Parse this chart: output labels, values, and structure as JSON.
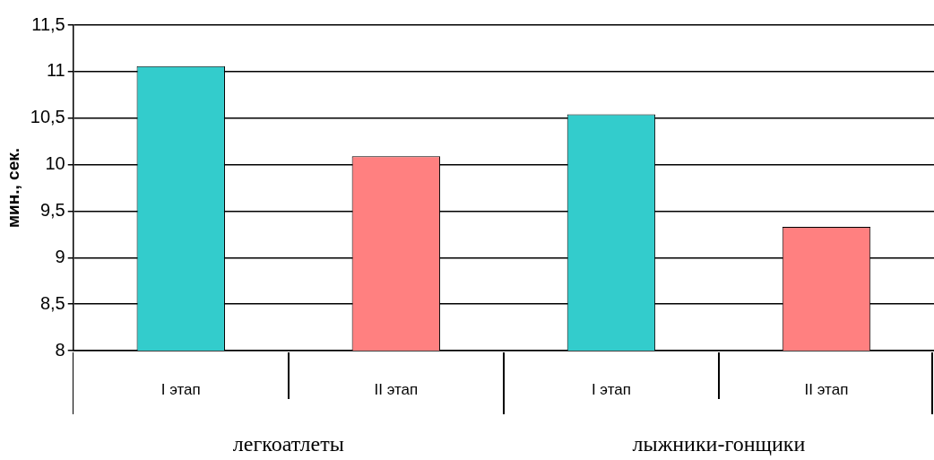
{
  "chart_data": {
    "type": "bar",
    "ylabel": "мин., сек.",
    "categories": [
      "I этап",
      "II этап",
      "I этап",
      "II этап"
    ],
    "values": [
      11.06,
      10.09,
      10.54,
      9.33
    ],
    "colors": [
      "#33cccc",
      "#ff8080",
      "#33cccc",
      "#ff8080"
    ],
    "ylim": [
      8,
      11.5
    ],
    "yticks": [
      8,
      {
        "value": 8.5,
        "label": "8,5"
      },
      9,
      {
        "value": 9.5,
        "label": "9,5"
      },
      10,
      {
        "value": 10.5,
        "label": "10,5"
      },
      11,
      {
        "value": 11.5,
        "label": "11,5"
      }
    ],
    "grid": "y",
    "legend": false,
    "annotations": [
      "легкоатлеты",
      "лыжники-гонщики"
    ]
  }
}
